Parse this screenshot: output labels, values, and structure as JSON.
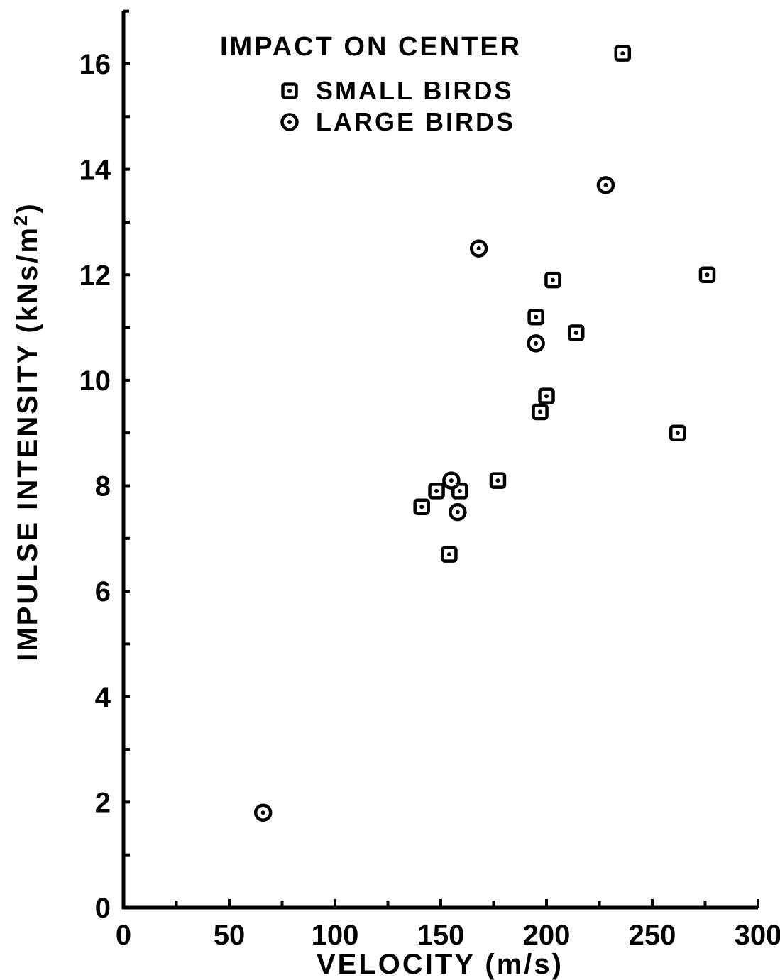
{
  "chart_data": {
    "type": "scatter",
    "title": "IMPACT ON CENTER",
    "xlabel": "VELOCITY (m/s)",
    "ylabel": "IMPULSE INTENSITY (kNs/m²)",
    "ylabel_parts": {
      "main": "IMPULSE INTENSITY (kNs/m",
      "sup": "2",
      "end": ")"
    },
    "xlim": [
      0,
      300
    ],
    "ylim": [
      0,
      16
    ],
    "x_ticks": [
      0,
      50,
      100,
      150,
      200,
      250,
      300
    ],
    "x_tick_labels": [
      "0",
      "50",
      "100",
      "150",
      "200",
      "250",
      "300"
    ],
    "x_minor_step": 25,
    "y_ticks": [
      0,
      2,
      4,
      6,
      8,
      10,
      12,
      14,
      16
    ],
    "y_tick_labels": [
      "0",
      "2",
      "4",
      "6",
      "8",
      "10",
      "12",
      "14",
      "16"
    ],
    "y_minor_step": 1,
    "y_axis_top": 17,
    "grid": false,
    "legend_position": "top-center",
    "series": [
      {
        "name": "SMALL BIRDS",
        "marker": "square-dot",
        "points": [
          {
            "x": 236,
            "y": 16.2
          },
          {
            "x": 276,
            "y": 12.0
          },
          {
            "x": 203,
            "y": 11.9
          },
          {
            "x": 195,
            "y": 11.2
          },
          {
            "x": 214,
            "y": 10.9
          },
          {
            "x": 200,
            "y": 9.7
          },
          {
            "x": 197,
            "y": 9.4
          },
          {
            "x": 262,
            "y": 9.0
          },
          {
            "x": 177,
            "y": 8.1
          },
          {
            "x": 148,
            "y": 7.9
          },
          {
            "x": 159,
            "y": 7.9
          },
          {
            "x": 141,
            "y": 7.6
          },
          {
            "x": 154,
            "y": 6.7
          }
        ]
      },
      {
        "name": "LARGE BIRDS",
        "marker": "circle-dot",
        "points": [
          {
            "x": 228,
            "y": 13.7
          },
          {
            "x": 168,
            "y": 12.5
          },
          {
            "x": 195,
            "y": 10.7
          },
          {
            "x": 155,
            "y": 8.1
          },
          {
            "x": 158,
            "y": 7.5
          },
          {
            "x": 66,
            "y": 1.8
          }
        ]
      }
    ]
  }
}
